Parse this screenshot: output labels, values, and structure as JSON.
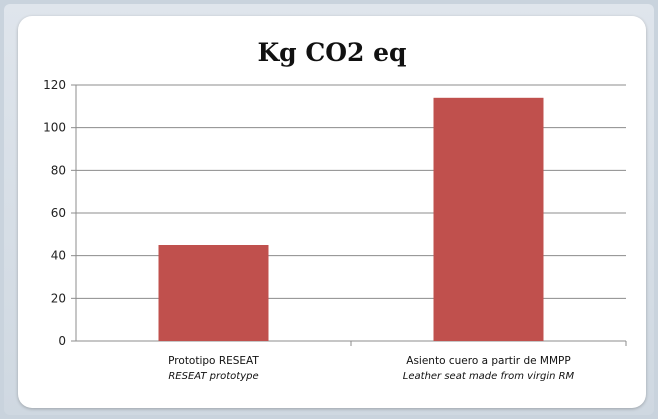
{
  "chart_data": {
    "type": "bar",
    "title": "Kg CO2 eq",
    "categories": [
      "Prototipo RESEAT",
      "Asiento cuero a partir de MMPP"
    ],
    "category_subtitles": [
      "RESEAT prototype",
      "Leather seat made from virgin RM"
    ],
    "values": [
      45,
      114
    ],
    "ylim": [
      0,
      120
    ],
    "yticks": [
      0,
      20,
      40,
      60,
      80,
      100,
      120
    ],
    "grid": true,
    "bar_color": "#c0504d",
    "grid_color": "#8c8c8c"
  }
}
